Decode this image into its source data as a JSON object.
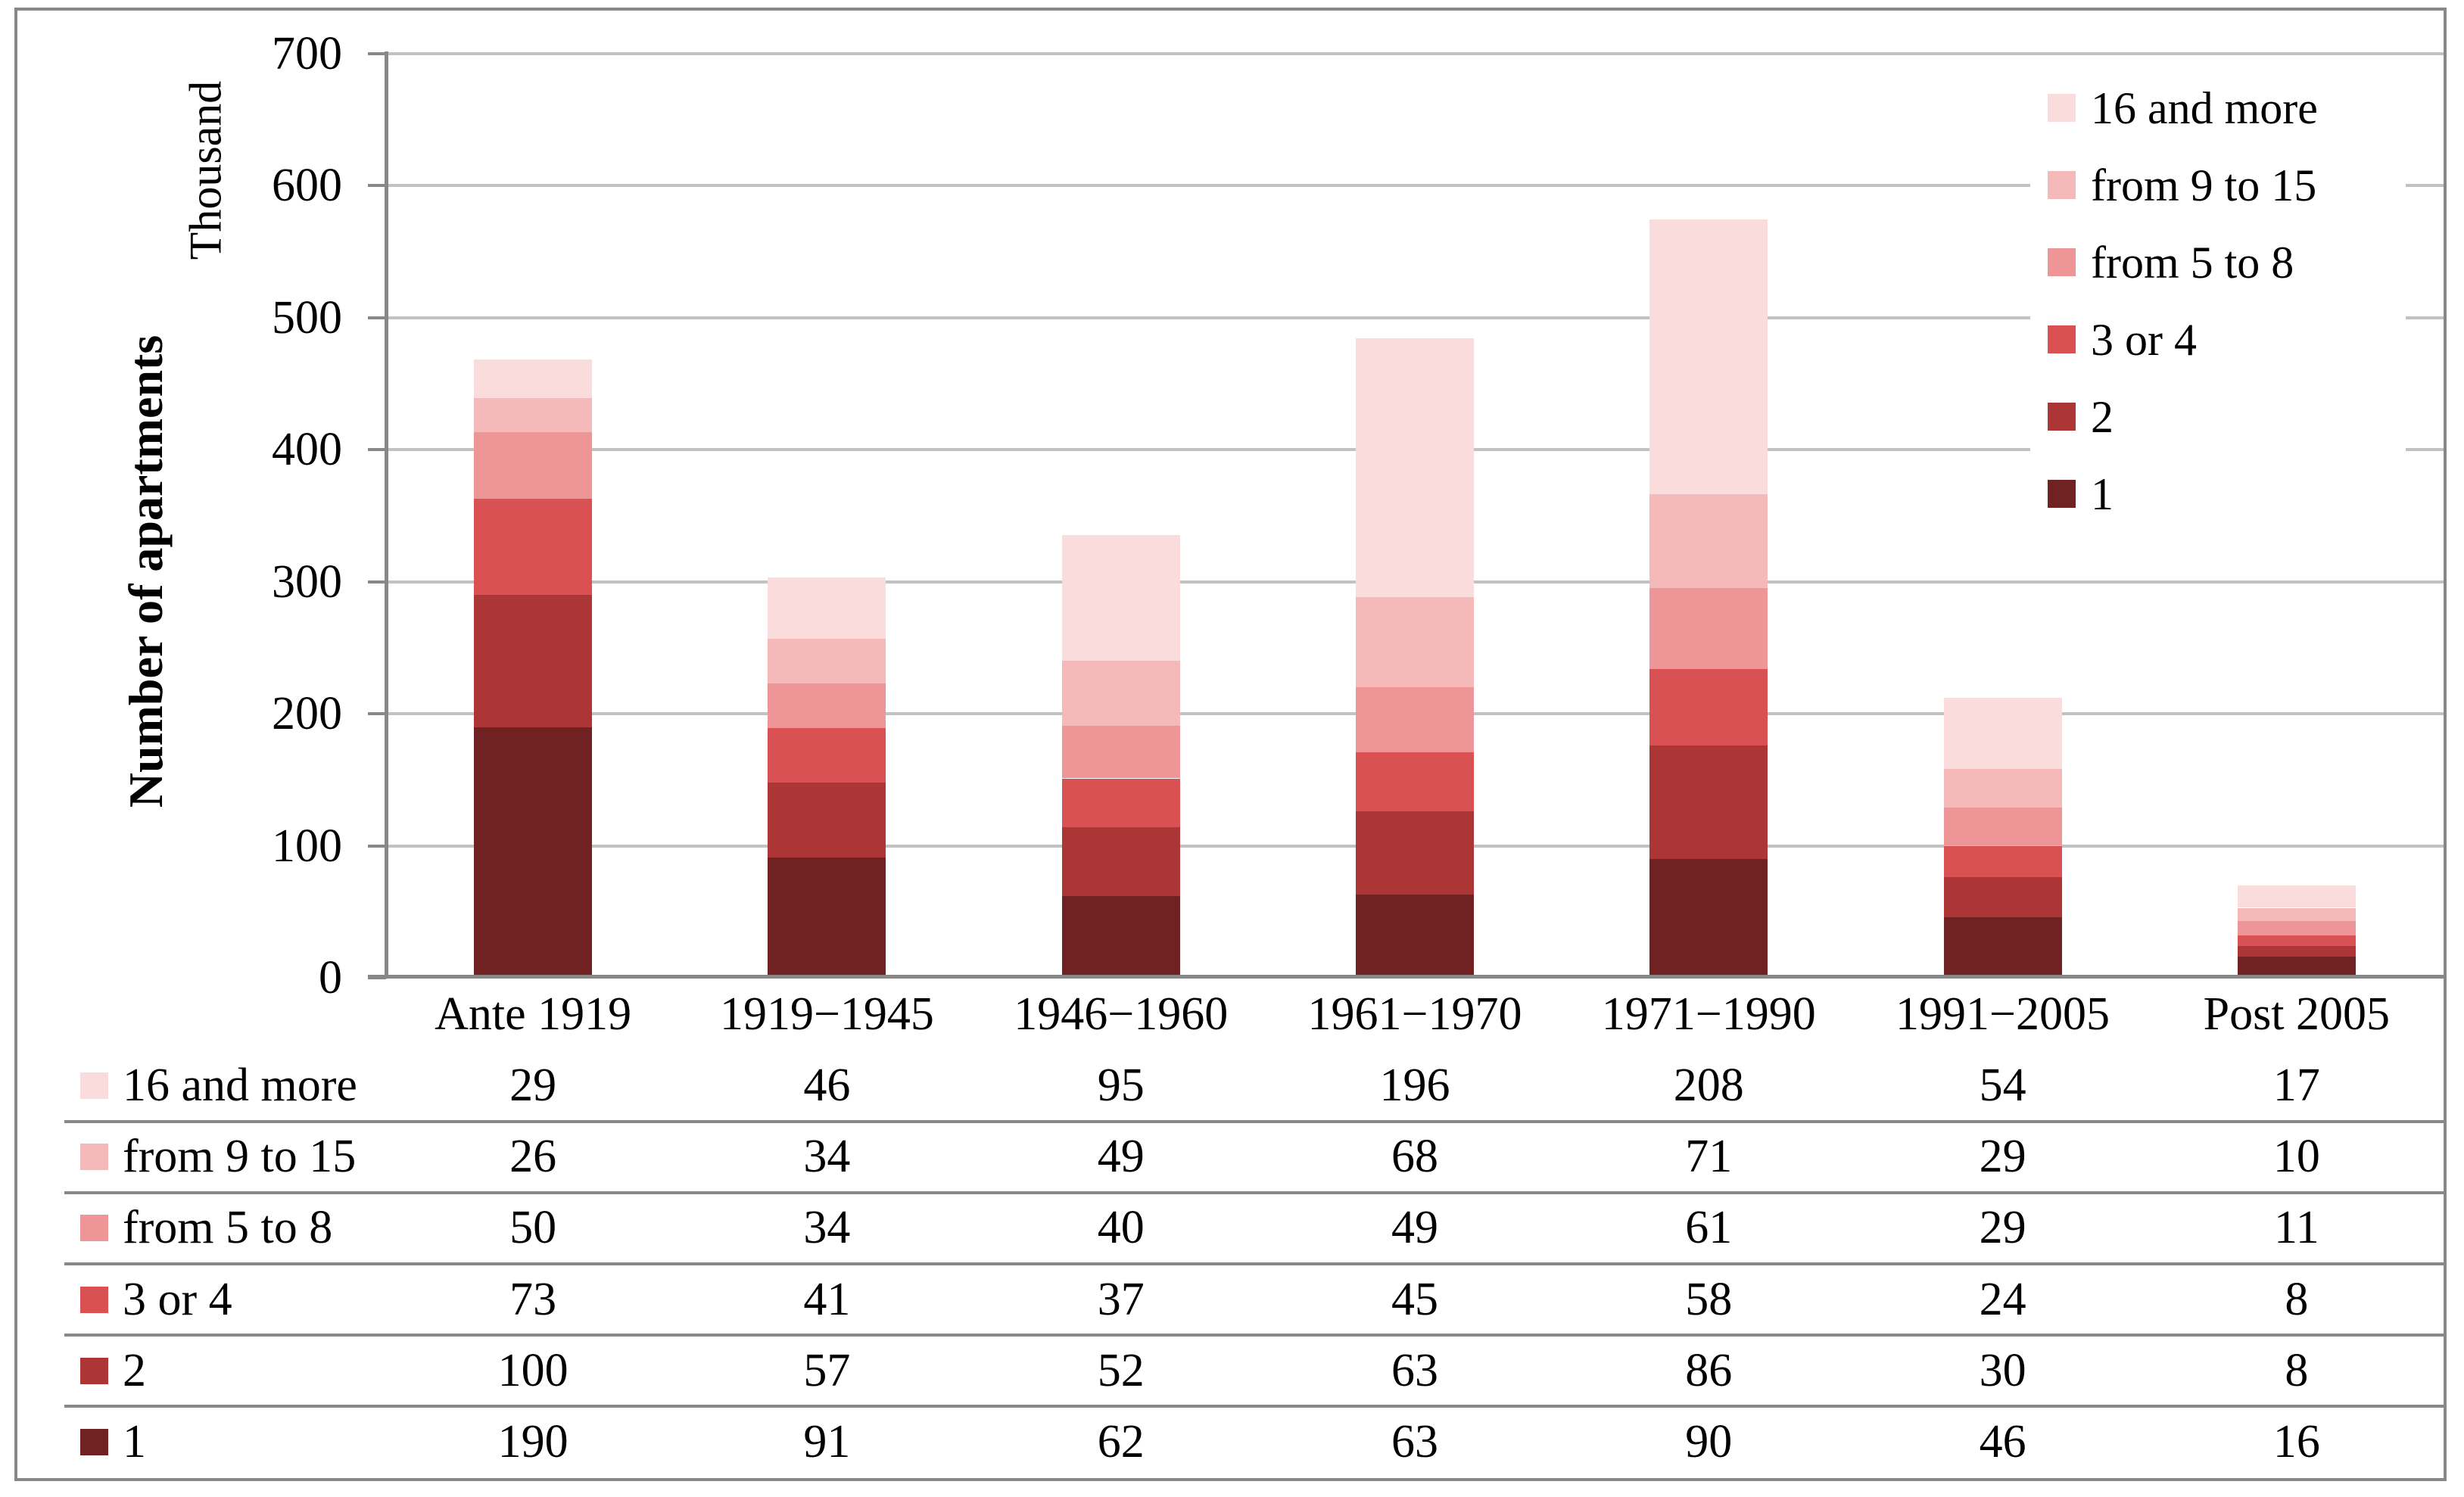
{
  "chart_data": {
    "type": "bar",
    "stacked": true,
    "title": "",
    "y_unit_label": "Thousand",
    "ylabel": "Number of apartments",
    "ylim": [
      0,
      700
    ],
    "ytick_step": 100,
    "ytick_labels": [
      "0",
      "100",
      "200",
      "300",
      "400",
      "500",
      "600",
      "700"
    ],
    "grid": true,
    "legend_position": "top-right",
    "categories": [
      "Ante 1919",
      "1919−1945",
      "1946−1960",
      "1961−1970",
      "1971−1990",
      "1991−2005",
      "Post 2005"
    ],
    "series_bottom_to_top": [
      {
        "name": "1",
        "color": "#702121",
        "values": [
          190,
          91,
          62,
          63,
          90,
          46,
          16
        ]
      },
      {
        "name": "2",
        "color": "#AC3536",
        "values": [
          100,
          57,
          52,
          63,
          86,
          30,
          8
        ]
      },
      {
        "name": "3 or 4",
        "color": "#D95153",
        "values": [
          73,
          41,
          37,
          45,
          58,
          24,
          8
        ]
      },
      {
        "name": "from 5 to 8",
        "color": "#EE9697",
        "values": [
          50,
          34,
          40,
          49,
          61,
          29,
          11
        ]
      },
      {
        "name": "from 9 to 15",
        "color": "#F5B9BA",
        "values": [
          26,
          34,
          49,
          68,
          71,
          29,
          10
        ]
      },
      {
        "name": "16 and more",
        "color": "#FADCDC",
        "values": [
          29,
          46,
          95,
          196,
          208,
          54,
          17
        ]
      }
    ],
    "legend_top_to_bottom": [
      "16 and more",
      "from 9 to 15",
      "from 5 to 8",
      "3 or 4",
      "2",
      "1"
    ],
    "table_rows_top_to_bottom": [
      "16 and more",
      "from 9 to 15",
      "from 5 to 8",
      "3 or 4",
      "2",
      "1"
    ],
    "colors": {
      "gridline": "#C2C2C2",
      "axis_line": "#878787",
      "table_line": "#878787",
      "chart_border": "#878787",
      "text": "#000000",
      "background": "#FFFFFF"
    }
  }
}
